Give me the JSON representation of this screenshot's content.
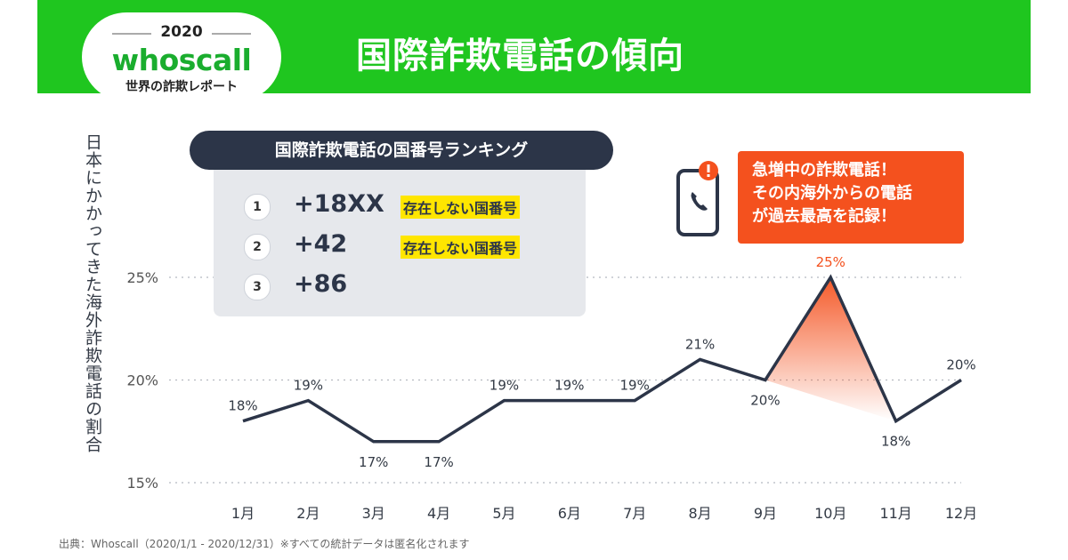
{
  "header": {
    "year": "2020",
    "brand": "whoscall",
    "subtitle": "世界の詐欺レポート",
    "title": "国際詐欺電話の傾向",
    "bg_color": "#1fc61f"
  },
  "ranking": {
    "heading": "国際詐欺電話の国番号ランキング",
    "items": [
      {
        "rank": "1",
        "code": "+18XX",
        "note": "存在しない国番号"
      },
      {
        "rank": "2",
        "code": "+42",
        "note": "存在しない国番号"
      },
      {
        "rank": "3",
        "code": "+86",
        "note": ""
      }
    ]
  },
  "callout": {
    "lines": [
      "急増中の詐欺電話！",
      "その内海外からの電話",
      "が過去最高を記録！"
    ],
    "color": "#f4511e",
    "icon": "phone-alert-icon"
  },
  "source": "出典：Whoscall（2020/1/1 - 2020/12/31）※すべての統計データは匿名化されます",
  "chart_data": {
    "type": "line",
    "categories": [
      "1月",
      "2月",
      "3月",
      "4月",
      "5月",
      "6月",
      "7月",
      "8月",
      "9月",
      "10月",
      "11月",
      "12月"
    ],
    "values": [
      18,
      19,
      17,
      17,
      19,
      19,
      19,
      21,
      20,
      25,
      18,
      20
    ],
    "value_labels": [
      "18%",
      "19%",
      "17%",
      "17%",
      "19%",
      "19%",
      "19%",
      "21%",
      "20%",
      "25%",
      "18%",
      "20%"
    ],
    "yticks": [
      "15%",
      "20%",
      "25%"
    ],
    "ytick_values": [
      15,
      20,
      25
    ],
    "ylabel": "日本にかかってきた海外詐欺電話の割合",
    "ylim": [
      15,
      25
    ],
    "grid": "dotted",
    "highlight_index": 9,
    "line_color": "#2c3548",
    "highlight_color": "#f4511e"
  }
}
